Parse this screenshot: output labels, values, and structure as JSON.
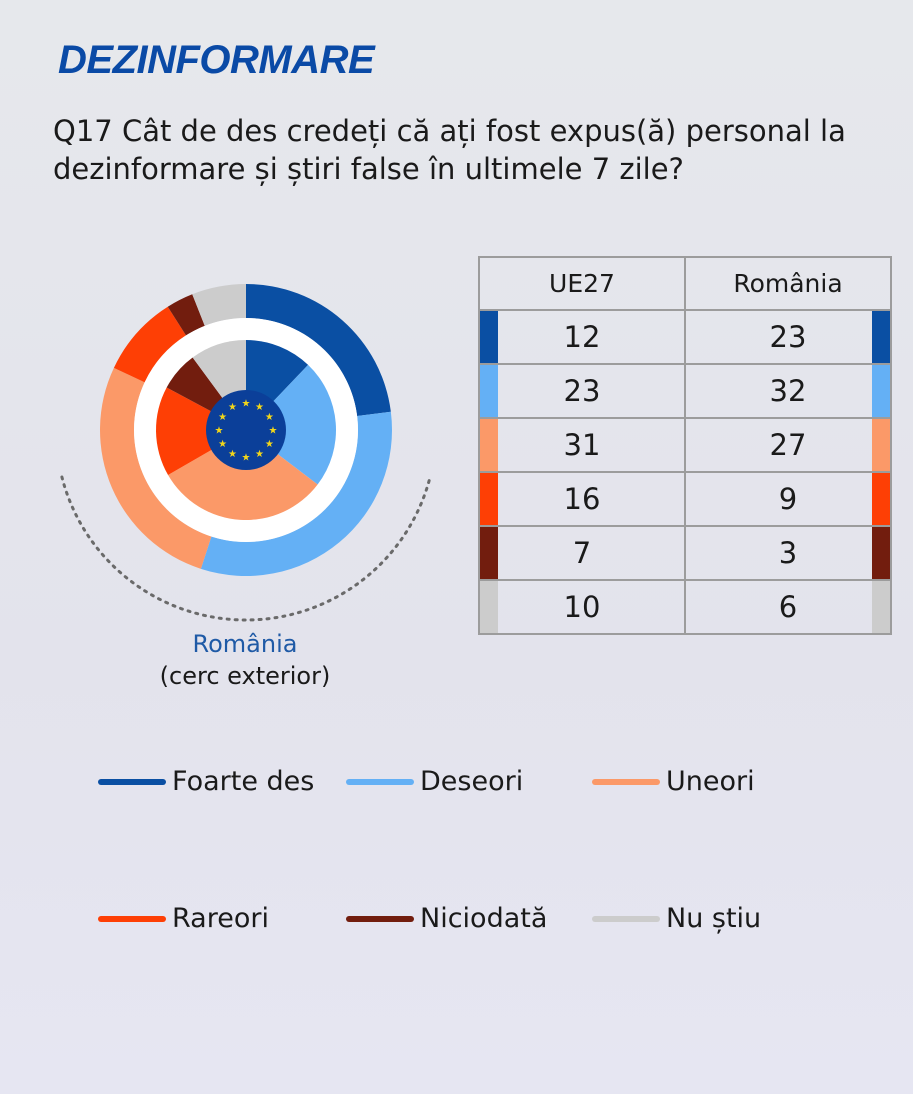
{
  "header": {
    "title": "DEZINFORMARE",
    "question": "Q17 Cât de des credeți că ați fost expus(ă) personal la dezinformare și știri false în ultimele 7 zile?"
  },
  "caption": {
    "line1": "România",
    "line2": "(cerc exterior)"
  },
  "colors": {
    "Foarte des": "#0a4fa3",
    "Deseori": "#64b0f5",
    "Uneori": "#fb9968",
    "Rareori": "#fe3f05",
    "Niciodată": "#721d0e",
    "Nu știu": "#cccccc",
    "eu_flag": "#0b3f99",
    "eu_star": "#f2d61a"
  },
  "table": {
    "headers": [
      "UE27",
      "România"
    ],
    "rows": [
      [
        "12",
        "23"
      ],
      [
        "23",
        "32"
      ],
      [
        "31",
        "27"
      ],
      [
        "16",
        "9"
      ],
      [
        "7",
        "3"
      ],
      [
        "10",
        "6"
      ]
    ]
  },
  "legend": [
    "Foarte des",
    "Deseori",
    "Uneori",
    "Rareori",
    "Niciodată",
    "Nu știu"
  ],
  "chart_data": {
    "type": "pie",
    "categories": [
      "Foarte des",
      "Deseori",
      "Uneori",
      "Rareori",
      "Niciodată",
      "Nu știu"
    ],
    "series": [
      {
        "name": "UE27",
        "values": [
          12,
          23,
          31,
          16,
          7,
          10
        ]
      },
      {
        "name": "România",
        "values": [
          23,
          32,
          27,
          9,
          3,
          6
        ]
      }
    ],
    "legend": "bottom"
  }
}
